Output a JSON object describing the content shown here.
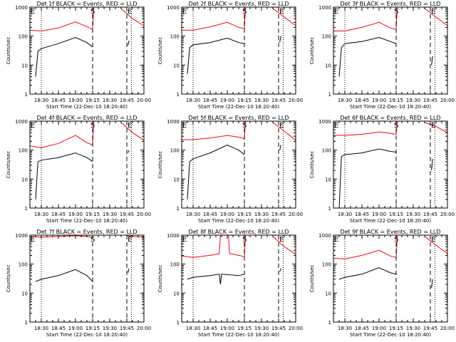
{
  "figure": {
    "background": "#ffffff",
    "axis_color": "#000000",
    "events_color": "#000000",
    "lld_color": "#ff0000"
  },
  "chart_data": [
    {
      "type": "line",
      "title": "Det 1f BLACK = Events, RED = LLD",
      "xlabel": "Start Time (22-Dec-10 18:20:40)",
      "ylabel": "Counts/sec",
      "yscale": "log",
      "ylim": [
        1,
        1000
      ],
      "xlim": [
        "18:20",
        "20:00"
      ],
      "xticks": [
        "18:30",
        "18:45",
        "19:00",
        "19:15",
        "19:30",
        "19:45",
        "20:00"
      ],
      "yticks": [
        "1",
        "10",
        "100",
        "1000"
      ],
      "grid": false,
      "markers": {
        "E": "18:20",
        "S": "19:15",
        "E2": "19:45"
      },
      "dotted_lines": [
        "18:30",
        "19:49"
      ],
      "dashed_lines": [
        "19:15",
        "19:45"
      ],
      "lld_segments": [
        [
          [
            "18:20",
            160
          ],
          [
            "18:30",
            150
          ],
          [
            "18:45",
            190
          ],
          [
            "19:00",
            310
          ],
          [
            "19:10",
            210
          ],
          [
            "19:15",
            170
          ],
          [
            "19:16",
            1000
          ]
        ],
        [
          [
            "19:40",
            900
          ],
          [
            "19:50",
            400
          ],
          [
            "20:00",
            230
          ]
        ]
      ],
      "events_segments": [
        [
          [
            "18:25",
            4
          ],
          [
            "18:27",
            30
          ],
          [
            "18:30",
            37
          ],
          [
            "18:45",
            55
          ],
          [
            "19:00",
            90
          ],
          [
            "19:10",
            60
          ],
          [
            "19:15",
            42
          ]
        ],
        [
          [
            "19:46",
            48
          ],
          [
            "19:47",
            70
          ]
        ]
      ]
    },
    {
      "type": "line",
      "title": "Det 2f BLACK = Events, RED = LLD",
      "xlabel": "Start Time (22-Dec-10 18:20:40)",
      "ylabel": "Counts/sec",
      "yscale": "log",
      "ylim": [
        1,
        1000
      ],
      "xlim": [
        "18:20",
        "20:00"
      ],
      "xticks": [
        "18:30",
        "18:45",
        "19:00",
        "19:15",
        "19:30",
        "19:45",
        "20:00"
      ],
      "yticks": [
        "1",
        "10",
        "100",
        "1000"
      ],
      "grid": false,
      "markers": {
        "E": "18:20",
        "S": "19:15",
        "E2": "19:45"
      },
      "dotted_lines": [
        "18:30",
        "19:49"
      ],
      "dashed_lines": [
        "19:15",
        "19:45"
      ],
      "lld_segments": [
        [
          [
            "18:20",
            160
          ],
          [
            "18:30",
            160
          ],
          [
            "18:45",
            210
          ],
          [
            "19:00",
            300
          ],
          [
            "19:10",
            200
          ],
          [
            "19:15",
            180
          ],
          [
            "19:16",
            1000
          ]
        ],
        [
          [
            "19:40",
            900
          ],
          [
            "19:50",
            450
          ],
          [
            "20:00",
            230
          ]
        ]
      ],
      "events_segments": [
        [
          [
            "18:25",
            5
          ],
          [
            "18:27",
            40
          ],
          [
            "18:30",
            50
          ],
          [
            "18:45",
            60
          ],
          [
            "19:00",
            85
          ],
          [
            "19:10",
            60
          ],
          [
            "19:15",
            55
          ]
        ],
        [
          [
            "19:46",
            60
          ],
          [
            "19:47",
            100
          ]
        ]
      ]
    },
    {
      "type": "line",
      "title": "Det 3f BLACK = Events, RED = LLD",
      "xlabel": "Start Time (22-Dec-10 18:20:40)",
      "ylabel": "Counts/sec",
      "yscale": "log",
      "ylim": [
        1,
        1000
      ],
      "xlim": [
        "18:20",
        "20:00"
      ],
      "xticks": [
        "18:30",
        "18:45",
        "19:00",
        "19:15",
        "19:30",
        "19:45",
        "20:00"
      ],
      "yticks": [
        "1",
        "10",
        "100",
        "1000"
      ],
      "grid": false,
      "markers": {
        "E": "18:20",
        "S": "19:15",
        "E2": "19:45"
      },
      "dotted_lines": [
        "18:30",
        "19:49"
      ],
      "dashed_lines": [
        "19:15",
        "19:45"
      ],
      "lld_segments": [
        [
          [
            "18:20",
            150
          ],
          [
            "18:30",
            150
          ],
          [
            "18:45",
            200
          ],
          [
            "19:00",
            300
          ],
          [
            "19:10",
            190
          ],
          [
            "19:15",
            170
          ],
          [
            "19:16",
            1000
          ]
        ],
        [
          [
            "19:40",
            900
          ],
          [
            "19:50",
            450
          ],
          [
            "20:00",
            230
          ]
        ]
      ],
      "events_segments": [
        [
          [
            "18:25",
            4
          ],
          [
            "18:27",
            40
          ],
          [
            "18:30",
            55
          ],
          [
            "18:45",
            65
          ],
          [
            "19:00",
            90
          ],
          [
            "19:10",
            65
          ],
          [
            "19:15",
            55
          ]
        ],
        [
          [
            "19:46",
            10
          ],
          [
            "19:47",
            20
          ]
        ]
      ]
    },
    {
      "type": "line",
      "title": "Det 4f BLACK = Events, RED = LLD",
      "xlabel": "Start Time (22-Dec-10 18:20:40)",
      "ylabel": "Counts/sec",
      "yscale": "log",
      "ylim": [
        1,
        1000
      ],
      "xlim": [
        "18:20",
        "20:00"
      ],
      "xticks": [
        "18:30",
        "18:45",
        "19:00",
        "19:15",
        "19:30",
        "19:45",
        "20:00"
      ],
      "yticks": [
        "1",
        "10",
        "100",
        "1000"
      ],
      "grid": false,
      "markers": {
        "E": "18:20",
        "S": "19:15",
        "E2": "19:45"
      },
      "dotted_lines": [
        "18:30",
        "19:49"
      ],
      "dashed_lines": [
        "19:15",
        "19:45"
      ],
      "lld_segments": [
        [
          [
            "18:20",
            140
          ],
          [
            "18:30",
            120
          ],
          [
            "18:45",
            170
          ],
          [
            "19:00",
            320
          ],
          [
            "19:10",
            180
          ],
          [
            "19:15",
            150
          ],
          [
            "19:16",
            1000
          ]
        ],
        [
          [
            "19:40",
            900
          ],
          [
            "19:50",
            400
          ],
          [
            "20:00",
            220
          ]
        ]
      ],
      "events_segments": [
        [
          [
            "18:25",
            2
          ],
          [
            "18:27",
            40
          ],
          [
            "18:30",
            45
          ],
          [
            "18:45",
            55
          ],
          [
            "19:00",
            80
          ],
          [
            "19:10",
            55
          ],
          [
            "19:15",
            40
          ]
        ],
        [
          [
            "19:46",
            80
          ],
          [
            "19:47",
            100
          ]
        ]
      ]
    },
    {
      "type": "line",
      "title": "Det 5f BLACK = Events, RED = LLD",
      "xlabel": "Start Time (22-Dec-10 18:20:40)",
      "ylabel": "Counts/sec",
      "yscale": "log",
      "ylim": [
        1,
        1000
      ],
      "xlim": [
        "18:20",
        "20:00"
      ],
      "xticks": [
        "18:30",
        "18:45",
        "19:00",
        "19:15",
        "19:30",
        "19:45",
        "20:00"
      ],
      "yticks": [
        "1",
        "10",
        "100",
        "1000"
      ],
      "grid": false,
      "markers": {
        "E": "18:20",
        "S": "19:15",
        "E2": "19:45"
      },
      "dotted_lines": [
        "18:30",
        "19:49"
      ],
      "dashed_lines": [
        "19:15",
        "19:45"
      ],
      "lld_segments": [
        [
          [
            "18:20",
            230
          ],
          [
            "18:30",
            230
          ],
          [
            "18:45",
            260
          ],
          [
            "19:00",
            320
          ],
          [
            "19:10",
            280
          ],
          [
            "19:15",
            250
          ],
          [
            "19:16",
            1000
          ]
        ],
        [
          [
            "19:40",
            900
          ],
          [
            "19:50",
            450
          ],
          [
            "20:00",
            220
          ]
        ]
      ],
      "events_segments": [
        [
          [
            "18:25",
            2
          ],
          [
            "18:27",
            40
          ],
          [
            "18:30",
            50
          ],
          [
            "18:45",
            80
          ],
          [
            "19:00",
            150
          ],
          [
            "19:10",
            100
          ],
          [
            "19:15",
            70
          ]
        ],
        [
          [
            "19:46",
            100
          ],
          [
            "19:47",
            150
          ]
        ]
      ]
    },
    {
      "type": "line",
      "title": "Det 6f BLACK = Events, RED = LLD",
      "xlabel": "Start Time (22-Dec-10 18:20:40)",
      "ylabel": "Counts/sec",
      "yscale": "log",
      "ylim": [
        1,
        1000
      ],
      "xlim": [
        "18:20",
        "20:00"
      ],
      "xticks": [
        "18:30",
        "18:45",
        "19:00",
        "19:15",
        "19:30",
        "19:45",
        "20:00"
      ],
      "yticks": [
        "1",
        "10",
        "100",
        "1000"
      ],
      "grid": false,
      "markers": {
        "E": "18:20",
        "S": "19:15",
        "E2": "19:45"
      },
      "dotted_lines": [
        "18:30",
        "19:49"
      ],
      "dashed_lines": [
        "19:15",
        "19:45"
      ],
      "lld_segments": [
        [
          [
            "18:20",
            330
          ],
          [
            "18:30",
            320
          ],
          [
            "18:45",
            350
          ],
          [
            "19:00",
            420
          ],
          [
            "19:10",
            380
          ],
          [
            "19:15",
            350
          ],
          [
            "19:16",
            1000
          ]
        ],
        [
          [
            "19:40",
            900
          ],
          [
            "19:50",
            650
          ],
          [
            "20:00",
            400
          ]
        ]
      ],
      "events_segments": [
        [
          [
            "18:25",
            1
          ],
          [
            "18:27",
            60
          ],
          [
            "18:30",
            70
          ],
          [
            "18:45",
            80
          ],
          [
            "19:00",
            110
          ],
          [
            "19:10",
            90
          ],
          [
            "19:15",
            85
          ]
        ],
        [
          [
            "19:46",
            20
          ],
          [
            "19:47",
            50
          ]
        ]
      ]
    },
    {
      "type": "line",
      "title": "Det 7f BLACK = Events, RED = LLD",
      "xlabel": "Start Time (22-Dec-10 18:20:40)",
      "ylabel": "Counts/sec",
      "yscale": "log",
      "ylim": [
        1,
        1000
      ],
      "xlim": [
        "18:20",
        "20:00"
      ],
      "xticks": [
        "18:30",
        "18:45",
        "19:00",
        "19:15",
        "19:30",
        "19:45",
        "20:00"
      ],
      "yticks": [
        "1",
        "10",
        "100",
        "1000"
      ],
      "grid": false,
      "markers": {
        "E": "18:20",
        "S": "19:15",
        "E2": "19:45"
      },
      "dotted_lines": [
        "18:30",
        "19:49"
      ],
      "dashed_lines": [
        "19:15",
        "19:45"
      ],
      "lld_segments": [
        [
          [
            "18:20",
            900
          ],
          [
            "18:30",
            850
          ],
          [
            "18:45",
            900
          ],
          [
            "19:00",
            950
          ],
          [
            "19:10",
            900
          ],
          [
            "19:15",
            850
          ]
        ],
        [
          [
            "19:45",
            950
          ],
          [
            "19:50",
            900
          ],
          [
            "20:00",
            850
          ]
        ]
      ],
      "events_segments": [
        [
          [
            "18:25",
            25
          ],
          [
            "18:30",
            30
          ],
          [
            "18:45",
            40
          ],
          [
            "19:00",
            65
          ],
          [
            "19:10",
            40
          ],
          [
            "19:15",
            25
          ]
        ],
        [
          [
            "19:46",
            50
          ],
          [
            "19:47",
            70
          ]
        ]
      ]
    },
    {
      "type": "line",
      "title": "Det 8f BLACK = Events, RED = LLD",
      "xlabel": "Start Time (22-Dec-10 18:20:40)",
      "ylabel": "Counts/sec",
      "yscale": "log",
      "ylim": [
        1,
        1000
      ],
      "xlim": [
        "18:20",
        "20:00"
      ],
      "xticks": [
        "18:30",
        "18:45",
        "19:00",
        "19:15",
        "19:30",
        "19:45",
        "20:00"
      ],
      "yticks": [
        "1",
        "10",
        "100",
        "1000"
      ],
      "grid": false,
      "markers": {
        "E": "18:20",
        "S": "19:15",
        "E2": "19:45"
      },
      "dotted_lines": [
        "18:30",
        "19:49"
      ],
      "dashed_lines": [
        "19:15",
        "19:45"
      ],
      "lld_segments": [
        [
          [
            "18:20",
            190
          ],
          [
            "18:30",
            170
          ],
          [
            "18:45",
            200
          ],
          [
            "18:53",
            230
          ],
          [
            "18:54",
            1000
          ],
          [
            "19:01",
            1000
          ],
          [
            "19:02",
            230
          ],
          [
            "19:10",
            200
          ],
          [
            "19:15",
            180
          ],
          [
            "19:16",
            1000
          ]
        ],
        [
          [
            "19:40",
            900
          ],
          [
            "19:50",
            400
          ],
          [
            "20:00",
            220
          ]
        ]
      ],
      "events_segments": [
        [
          [
            "18:25",
            30
          ],
          [
            "18:30",
            35
          ],
          [
            "18:45",
            40
          ],
          [
            "18:53",
            45
          ],
          [
            "18:54",
            20
          ],
          [
            "18:55",
            45
          ],
          [
            "19:10",
            40
          ],
          [
            "19:15",
            45
          ]
        ],
        [
          [
            "19:46",
            55
          ],
          [
            "19:47",
            70
          ]
        ]
      ]
    },
    {
      "type": "line",
      "title": "Det 9f BLACK = Events, RED = LLD",
      "xlabel": "Start Time (22-Dec-10 18:20:40)",
      "ylabel": "Counts/sec",
      "yscale": "log",
      "ylim": [
        1,
        1000
      ],
      "xlim": [
        "18:20",
        "20:00"
      ],
      "xticks": [
        "18:30",
        "18:45",
        "19:00",
        "19:15",
        "19:30",
        "19:45",
        "20:00"
      ],
      "yticks": [
        "1",
        "10",
        "100",
        "1000"
      ],
      "grid": false,
      "markers": {
        "E": "18:20",
        "S": "19:15",
        "E2": "19:45"
      },
      "dotted_lines": [
        "18:30",
        "19:49"
      ],
      "dashed_lines": [
        "19:15",
        "19:45"
      ],
      "lld_segments": [
        [
          [
            "18:20",
            160
          ],
          [
            "18:30",
            150
          ],
          [
            "18:45",
            200
          ],
          [
            "19:00",
            300
          ],
          [
            "19:10",
            190
          ],
          [
            "19:15",
            170
          ],
          [
            "19:16",
            1000
          ]
        ],
        [
          [
            "19:40",
            900
          ],
          [
            "19:50",
            450
          ],
          [
            "20:00",
            230
          ]
        ]
      ],
      "events_segments": [
        [
          [
            "18:25",
            30
          ],
          [
            "18:30",
            35
          ],
          [
            "18:45",
            45
          ],
          [
            "19:00",
            75
          ],
          [
            "19:10",
            50
          ],
          [
            "19:15",
            45
          ]
        ],
        [
          [
            "19:46",
            15
          ],
          [
            "19:47",
            30
          ]
        ]
      ]
    }
  ]
}
